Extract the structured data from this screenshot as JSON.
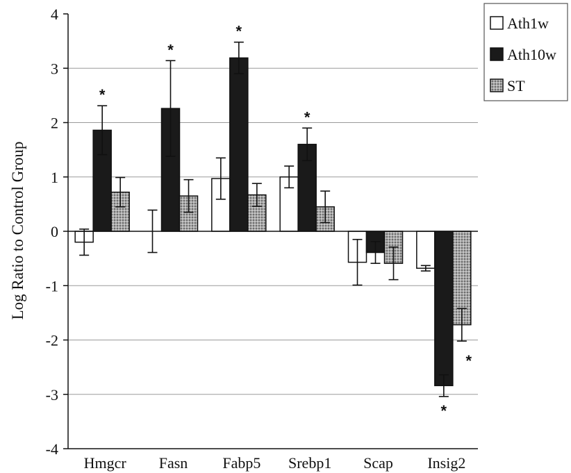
{
  "chart_data": {
    "type": "bar",
    "ylabel": "Log Ratio to Control Group",
    "xlabel": "",
    "ylim": [
      -4,
      4
    ],
    "yticks": [
      4,
      3,
      2,
      1,
      0,
      -1,
      -2,
      -3,
      -4
    ],
    "grid": true,
    "legend_position": "outside-top-right",
    "categories": [
      "Hmgcr",
      "Fasn",
      "Fabp5",
      "Srebp1",
      "Scap",
      "Insig2"
    ],
    "series": [
      {
        "name": "Ath1w",
        "color": "#ffffff",
        "pattern": "open",
        "values": [
          -0.2,
          0.0,
          0.97,
          1.0,
          -0.57,
          -0.68
        ],
        "errors": [
          0.24,
          0.39,
          0.38,
          0.2,
          0.42,
          0.05
        ]
      },
      {
        "name": "Ath10w",
        "color": "#1a1a1a",
        "pattern": "solid",
        "values": [
          1.86,
          2.26,
          3.19,
          1.6,
          -0.39,
          -2.84
        ],
        "errors": [
          0.45,
          0.88,
          0.29,
          0.3,
          0.2,
          0.2
        ]
      },
      {
        "name": "ST",
        "color": "#9a9a9a",
        "pattern": "dotted",
        "values": [
          0.72,
          0.65,
          0.67,
          0.45,
          -0.59,
          -1.72
        ],
        "errors": [
          0.27,
          0.3,
          0.21,
          0.29,
          0.3,
          0.3
        ]
      }
    ],
    "significance": [
      {
        "category": "Hmgcr",
        "series": "Ath10w",
        "label": "*"
      },
      {
        "category": "Fasn",
        "series": "Ath10w",
        "label": "*"
      },
      {
        "category": "Fabp5",
        "series": "Ath10w",
        "label": "*"
      },
      {
        "category": "Srebp1",
        "series": "Ath10w",
        "label": "*"
      },
      {
        "category": "Insig2",
        "series": "Ath10w",
        "label": "*"
      },
      {
        "category": "Insig2",
        "series": "ST",
        "label": "*"
      }
    ]
  }
}
